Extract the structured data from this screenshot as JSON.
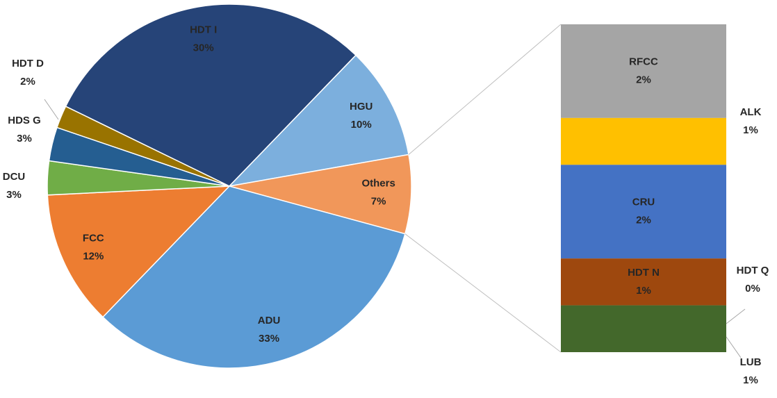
{
  "chart_data": [
    {
      "type": "pie",
      "categories": [
        "HDT I",
        "HGU",
        "Others",
        "ADU",
        "FCC",
        "DCU",
        "HDS G",
        "HDT D"
      ],
      "values": [
        30,
        10,
        7,
        33,
        12,
        3,
        3,
        2
      ],
      "value_labels": [
        "30%",
        "10%",
        "7%",
        "33%",
        "12%",
        "3%",
        "3%",
        "2%"
      ],
      "colors": [
        "#264478",
        "#7cafdd",
        "#f1975a",
        "#5b9bd5",
        "#ed7d31",
        "#70ad47",
        "#255e91",
        "#997300"
      ]
    },
    {
      "type": "bar",
      "stacked": true,
      "categories": [
        "RFCC",
        "ALK",
        "CRU",
        "HDT N",
        "HDT Q",
        "LUB"
      ],
      "values": [
        2,
        1,
        2,
        1,
        0,
        1
      ],
      "value_labels": [
        "2%",
        "1%",
        "2%",
        "1%",
        "0%",
        "1%"
      ],
      "colors": [
        "#a5a5a5",
        "#ffc000",
        "#4472c4",
        "#9e480e",
        "#636363",
        "#43682b"
      ]
    }
  ]
}
